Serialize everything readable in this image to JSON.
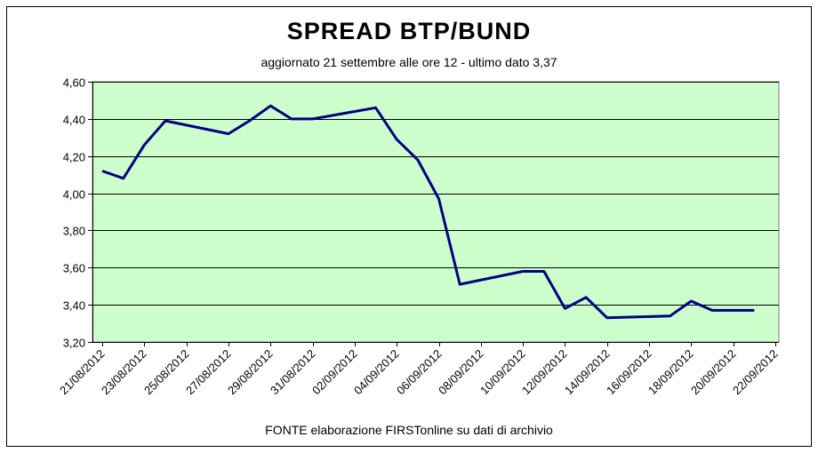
{
  "chart_data": {
    "type": "line",
    "title": "SPREAD  BTP/BUND",
    "subtitle": "aggiornato 21 settembre alle ore 12 - ultimo dato 3,37",
    "footer": "FONTE elaborazione FIRSTonline su dati di archivio",
    "xlabel": "",
    "ylabel": "",
    "ylim": [
      3.2,
      4.6
    ],
    "y_ticks": [
      "3,20",
      "3,40",
      "3,60",
      "3,80",
      "4,00",
      "4,20",
      "4,40",
      "4,60"
    ],
    "x_tick_labels": [
      "21/08/2012",
      "23/08/2012",
      "25/08/2012",
      "27/08/2012",
      "29/08/2012",
      "31/08/2012",
      "02/09/2012",
      "04/09/2012",
      "06/09/2012",
      "08/09/2012",
      "10/09/2012",
      "12/09/2012",
      "14/09/2012",
      "16/09/2012",
      "18/09/2012",
      "20/09/2012",
      "22/09/2012"
    ],
    "x": [
      "21/08/2012",
      "22/08/2012",
      "23/08/2012",
      "24/08/2012",
      "27/08/2012",
      "28/08/2012",
      "29/08/2012",
      "30/08/2012",
      "31/08/2012",
      "03/09/2012",
      "04/09/2012",
      "05/09/2012",
      "06/09/2012",
      "07/09/2012",
      "10/09/2012",
      "11/09/2012",
      "12/09/2012",
      "13/09/2012",
      "14/09/2012",
      "17/09/2012",
      "18/09/2012",
      "19/09/2012",
      "20/09/2012",
      "21/09/2012"
    ],
    "series": [
      {
        "values": [
          4.12,
          4.08,
          4.26,
          4.39,
          4.32,
          4.39,
          4.47,
          4.4,
          4.4,
          4.46,
          4.29,
          4.18,
          3.97,
          3.51,
          3.58,
          3.58,
          3.38,
          3.44,
          3.33,
          3.34,
          3.42,
          3.37,
          3.37,
          3.37
        ]
      }
    ],
    "grid": true,
    "colors": {
      "plot_background": "#ccffcc",
      "line": "#000080",
      "grid": "#000000"
    }
  }
}
